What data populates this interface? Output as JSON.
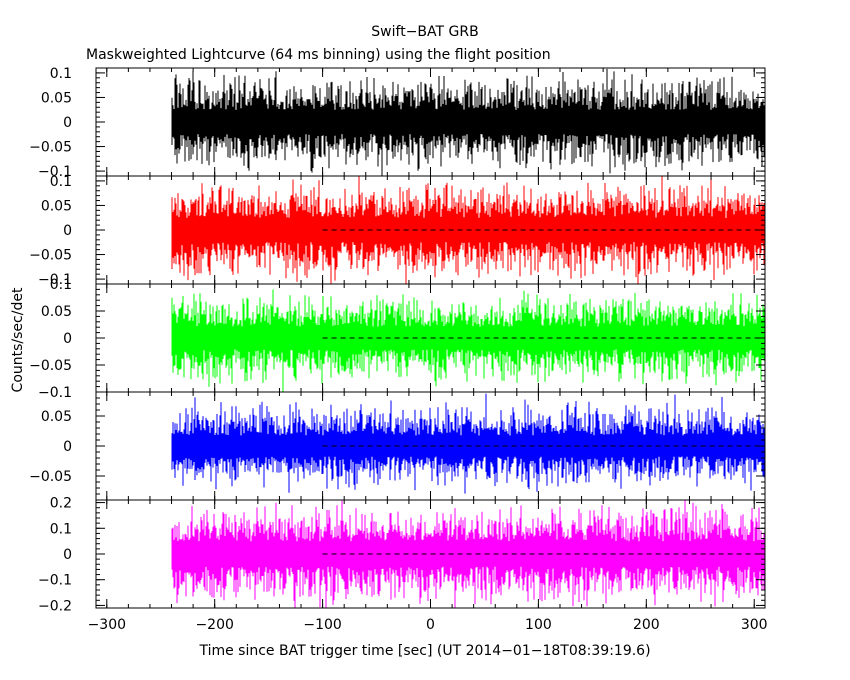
{
  "title": "Swift−BAT GRB",
  "subtitle": "Maskweighted Lightcurve (64 ms binning) using the flight position",
  "xlabel": "Time since BAT trigger time [sec] (UT 2014−01−18T08:39:19.6)",
  "ylabel": "Counts/sec/det",
  "chart_data": {
    "type": "line",
    "title": "Swift-BAT GRB",
    "subtitle": "Maskweighted Lightcurve (64 ms binning) using the flight position",
    "xlabel": "Time since BAT trigger time [sec] (UT 2014-01-18T08:39:19.6)",
    "ylabel": "Counts/sec/det",
    "xlim": [
      -310,
      310
    ],
    "x_ticks": [
      -300,
      -200,
      -100,
      0,
      100,
      200,
      300
    ],
    "x_tick_labels": [
      "−300",
      "−200",
      "−100",
      "0",
      "100",
      "200",
      "300"
    ],
    "data_x_range": [
      -240,
      310
    ],
    "binning_sec": 0.064,
    "panels": [
      {
        "color": "#000000",
        "ylim": [
          -0.11,
          0.11
        ],
        "yticks": [
          -0.1,
          -0.05,
          0,
          0.05,
          0.1
        ],
        "ytick_labels": [
          "−0.1",
          "−0.05",
          "0",
          "0.05",
          "0.1"
        ],
        "noise_amplitude": 0.035,
        "peak_amplitude": 0.095,
        "baseline_start": null
      },
      {
        "color": "#ff0000",
        "ylim": [
          -0.11,
          0.11
        ],
        "yticks": [
          -0.1,
          -0.05,
          0,
          0.05,
          0.1
        ],
        "ytick_labels": [
          "−0.1",
          "−0.05",
          "0",
          "0.05",
          "0.1"
        ],
        "noise_amplitude": 0.035,
        "peak_amplitude": 0.095,
        "baseline_start": -100
      },
      {
        "color": "#00ff00",
        "ylim": [
          -0.1,
          0.1
        ],
        "yticks": [
          -0.1,
          -0.05,
          0,
          0.05,
          0.1
        ],
        "ytick_labels": [
          "−0.1",
          "−0.05",
          "0",
          "0.05",
          "0.1"
        ],
        "noise_amplitude": 0.03,
        "peak_amplitude": 0.085,
        "baseline_start": -100
      },
      {
        "color": "#0000ff",
        "ylim": [
          -0.09,
          0.09
        ],
        "yticks": [
          -0.05,
          0,
          0.05
        ],
        "ytick_labels": [
          "−0.05",
          "0",
          "0.05"
        ],
        "noise_amplitude": 0.025,
        "peak_amplitude": 0.075,
        "baseline_start": -100
      },
      {
        "color": "#ff00ff",
        "ylim": [
          -0.21,
          0.21
        ],
        "yticks": [
          -0.2,
          -0.1,
          0,
          0.1,
          0.2
        ],
        "ytick_labels": [
          "−0.2",
          "−0.1",
          "0",
          "0.1",
          "0.2"
        ],
        "noise_amplitude": 0.07,
        "peak_amplitude": 0.18,
        "baseline_start": -100
      }
    ]
  }
}
